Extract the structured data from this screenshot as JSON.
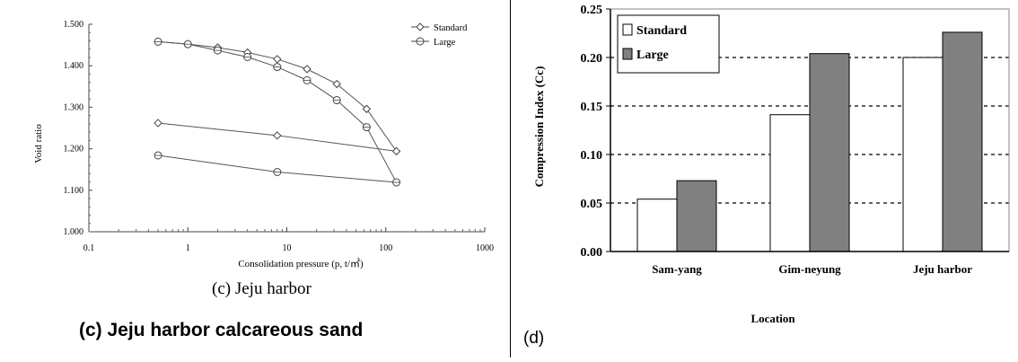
{
  "left_panel": {
    "subcaption": "(c) Jeju harbor",
    "caption": "(c) Jeju harbor calcareous sand"
  },
  "right_panel": {
    "label": "(d)"
  },
  "chart_data": [
    {
      "type": "line",
      "xlabel": "Consolidation pressure  (p, t/㎡)",
      "ylabel": "Void ratio",
      "xscale": "log",
      "xlim": [
        0.1,
        1000
      ],
      "ylim": [
        1.0,
        1.5
      ],
      "x_ticks": [
        "0.1",
        "1",
        "10",
        "100",
        "1000"
      ],
      "y_ticks": [
        "1.000",
        "1.100",
        "1.200",
        "1.300",
        "1.400",
        "1.500"
      ],
      "grid": false,
      "legend_position": "top-right",
      "series": [
        {
          "name": "Standard",
          "marker": "diamond",
          "points": [
            [
              0.5,
              1.458
            ],
            [
              1,
              1.452
            ],
            [
              2,
              1.444
            ],
            [
              4,
              1.432
            ],
            [
              8,
              1.416
            ],
            [
              16,
              1.392
            ],
            [
              32,
              1.356
            ],
            [
              64,
              1.296
            ],
            [
              128,
              1.194
            ],
            [
              8,
              1.232
            ],
            [
              0.5,
              1.262
            ]
          ]
        },
        {
          "name": "Large",
          "marker": "circle",
          "points": [
            [
              0.5,
              1.458
            ],
            [
              1,
              1.452
            ],
            [
              2,
              1.437
            ],
            [
              4,
              1.421
            ],
            [
              8,
              1.397
            ],
            [
              16,
              1.365
            ],
            [
              32,
              1.317
            ],
            [
              64,
              1.252
            ],
            [
              128,
              1.119
            ],
            [
              8,
              1.144
            ],
            [
              0.5,
              1.184
            ]
          ]
        }
      ]
    },
    {
      "type": "bar",
      "xlabel": "Location",
      "ylabel": "Compression Index (Cc)",
      "categories": [
        "Sam-yang",
        "Gim-neyung",
        "Jeju harbor"
      ],
      "ylim": [
        0,
        0.25
      ],
      "y_ticks": [
        "0.00",
        "0.05",
        "0.10",
        "0.15",
        "0.20",
        "0.25"
      ],
      "grid": "horizontal dashed",
      "legend_position": "top-left",
      "series": [
        {
          "name": "Standard",
          "values": [
            0.054,
            0.141,
            0.2
          ],
          "color": "#ffffff"
        },
        {
          "name": "Large",
          "values": [
            0.073,
            0.204,
            0.226
          ],
          "color": "#808080"
        }
      ]
    }
  ]
}
